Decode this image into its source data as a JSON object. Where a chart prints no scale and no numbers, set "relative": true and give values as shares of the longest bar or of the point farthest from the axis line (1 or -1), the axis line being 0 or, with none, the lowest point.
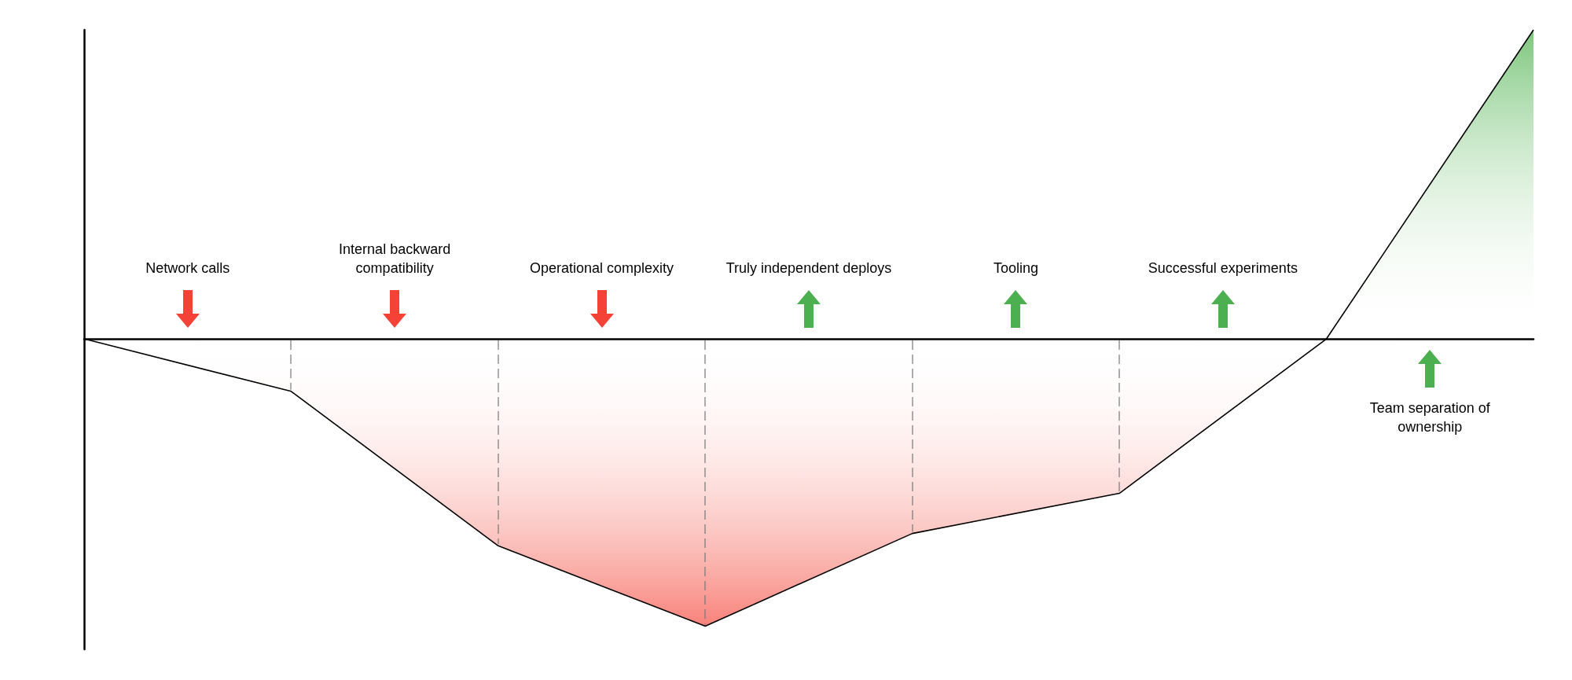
{
  "chart_data": {
    "type": "area",
    "relative": true,
    "categories": [
      null,
      null,
      null,
      null,
      null,
      null,
      null,
      null
    ],
    "series": [
      {
        "color": "#000000",
        "values": [
          0,
          -0.17,
          -0.67,
          -0.93,
          -0.63,
          -0.5,
          0,
          1
        ]
      }
    ],
    "annotations": [
      "Network calls",
      "Internal backward compatibility",
      "Operational complexity",
      "Truly independent deploys",
      "Tooling",
      "Successful experiments",
      "Team separation of ownership"
    ],
    "grid": false,
    "marker": "none",
    "line_style": "solid"
  }
}
